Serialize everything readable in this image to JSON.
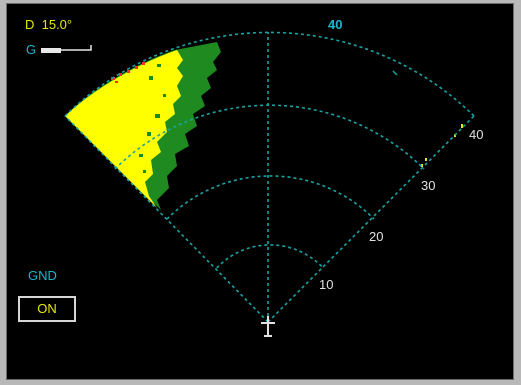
{
  "display": {
    "tilt_label": "D  15.0°",
    "gain_prefix": "G",
    "range_label": "40",
    "range_ring_labels": [
      "10",
      "20",
      "30",
      "40"
    ],
    "ground_clutter_label": "GND",
    "ground_clutter_button": "ON"
  },
  "colors": {
    "background": "#000000",
    "ring_color": "#1aa3a3",
    "label_cyan": "#1ab8cc",
    "label_yellow": "#e8e800",
    "weather_green": "#1f8a1f",
    "weather_yellow": "#ffff00",
    "weather_red": "#ff2a2a"
  },
  "icons": {
    "aircraft": "aircraft-symbol-icon",
    "gain_bar": "gain-bar-icon"
  }
}
